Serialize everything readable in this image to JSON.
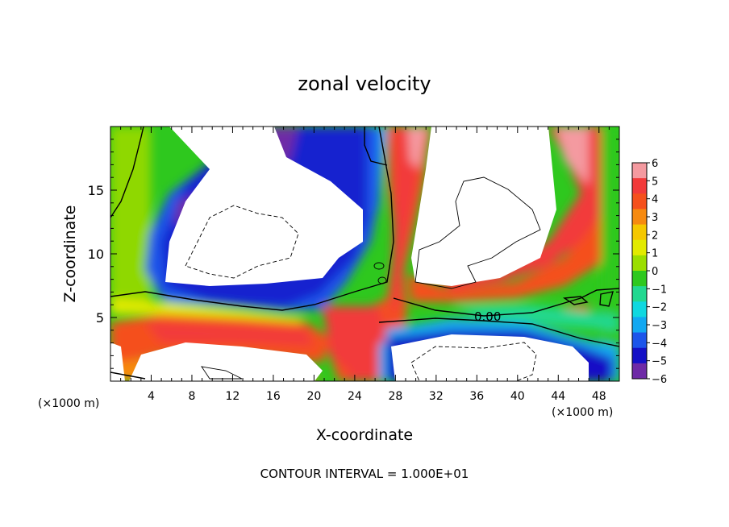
{
  "chart_data": {
    "type": "heatmap",
    "title": "zonal velocity",
    "xlabel": "X-coordinate",
    "ylabel": "Z-coordinate",
    "x_unit": "(×1000 m)",
    "x_ticks": [
      4,
      8,
      12,
      16,
      20,
      24,
      28,
      32,
      36,
      40,
      44,
      48
    ],
    "y_ticks": [
      5,
      10,
      15
    ],
    "xlim": [
      0,
      50
    ],
    "ylim": [
      0,
      20
    ],
    "colorbar": {
      "ticks": [
        6,
        5,
        4,
        3,
        2,
        1,
        0,
        -1,
        -2,
        -3,
        -4,
        -5,
        -6
      ],
      "range": [
        -6,
        6
      ],
      "colors": [
        "#f49aa0",
        "#f23a3a",
        "#f5501c",
        "#f68a10",
        "#f5c800",
        "#e2ea00",
        "#9bde00",
        "#2ec81e",
        "#22d890",
        "#10d8e0",
        "#12a8f2",
        "#1c55ea",
        "#1410c6",
        "#6e2aa6"
      ]
    },
    "contour_label": "0.00",
    "footer": "CONTOUR INTERVAL = 1.000E+01"
  }
}
